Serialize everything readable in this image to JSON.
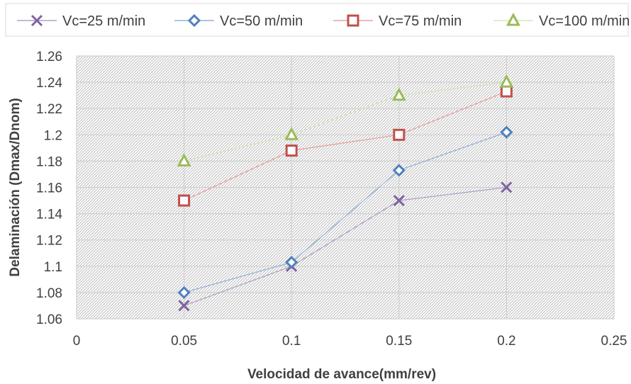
{
  "chart_data": {
    "type": "line",
    "title": "",
    "xlabel": "Velocidad de avance(mm/rev)",
    "ylabel": "Delaminación (Dmax/Dnom)",
    "xlim": [
      0,
      0.25
    ],
    "ylim": [
      1.06,
      1.26
    ],
    "xticks": [
      0,
      0.05,
      0.1,
      0.15,
      0.2,
      0.25
    ],
    "xtick_labels": [
      "0",
      "0.05",
      "0.1",
      "0.15",
      "0.2",
      "0.25"
    ],
    "yticks": [
      1.06,
      1.08,
      1.1,
      1.12,
      1.14,
      1.16,
      1.18,
      1.2,
      1.22,
      1.24,
      1.26
    ],
    "ytick_labels": [
      "1.06",
      "1.08",
      "1.1",
      "1.12",
      "1.14",
      "1.16",
      "1.18",
      "1.2",
      "1.22",
      "1.24",
      "1.26"
    ],
    "grid": true,
    "legend_position": "top",
    "x": [
      0.05,
      0.1,
      0.15,
      0.2
    ],
    "series": [
      {
        "name": "Vc=25 m/min",
        "values": [
          1.07,
          1.1,
          1.15,
          1.16
        ],
        "marker": "x",
        "color": "#7f63a2",
        "line_color": "#b3a2c7"
      },
      {
        "name": "Vc=50 m/min",
        "values": [
          1.08,
          1.103,
          1.173,
          1.202
        ],
        "marker": "diamond",
        "color": "#4f81bd",
        "line_color": "#95b3d7"
      },
      {
        "name": "Vc=75 m/min",
        "values": [
          1.15,
          1.188,
          1.2,
          1.233
        ],
        "marker": "square",
        "color": "#c0504d",
        "line_color": "#e6a3a1"
      },
      {
        "name": "Vc=100 m/min",
        "values": [
          1.18,
          1.2,
          1.23,
          1.24
        ],
        "marker": "triangle",
        "color": "#9bbb59",
        "line_color": "#d7e4bd"
      }
    ]
  }
}
